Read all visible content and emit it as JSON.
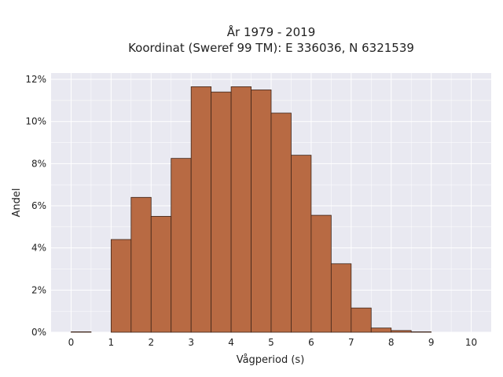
{
  "chart_data": {
    "type": "bar",
    "title_line1": "År 1979 - 2019",
    "title_line2": "Koordinat (Sweref 99 TM): E 336036, N 6321539",
    "xlabel": "Vågperiod (s)",
    "ylabel": "Andel",
    "xlim": [
      -0.5,
      10.5
    ],
    "ylim": [
      0,
      12.3
    ],
    "x_ticks": [
      0,
      1,
      2,
      3,
      4,
      5,
      6,
      7,
      8,
      9,
      10
    ],
    "y_ticks": [
      0,
      2,
      4,
      6,
      8,
      10,
      12
    ],
    "y_tick_suffix": "%",
    "bin_width": 0.5,
    "bins": [
      {
        "start": 0.0,
        "value": 0.02
      },
      {
        "start": 0.5,
        "value": 0.0
      },
      {
        "start": 1.0,
        "value": 4.4
      },
      {
        "start": 1.5,
        "value": 6.4
      },
      {
        "start": 2.0,
        "value": 5.5
      },
      {
        "start": 2.5,
        "value": 8.25
      },
      {
        "start": 3.0,
        "value": 11.65
      },
      {
        "start": 3.5,
        "value": 11.4
      },
      {
        "start": 4.0,
        "value": 11.65
      },
      {
        "start": 4.5,
        "value": 11.5
      },
      {
        "start": 5.0,
        "value": 10.4
      },
      {
        "start": 5.5,
        "value": 8.4
      },
      {
        "start": 6.0,
        "value": 5.55
      },
      {
        "start": 6.5,
        "value": 3.25
      },
      {
        "start": 7.0,
        "value": 1.15
      },
      {
        "start": 7.5,
        "value": 0.2
      },
      {
        "start": 8.0,
        "value": 0.08
      },
      {
        "start": 8.5,
        "value": 0.02
      }
    ],
    "grid": true,
    "colors": {
      "background": "#e9e9f1",
      "grid": "#ffffff",
      "bar_fill": "#b86a43",
      "bar_edge": "#3d2418"
    }
  }
}
